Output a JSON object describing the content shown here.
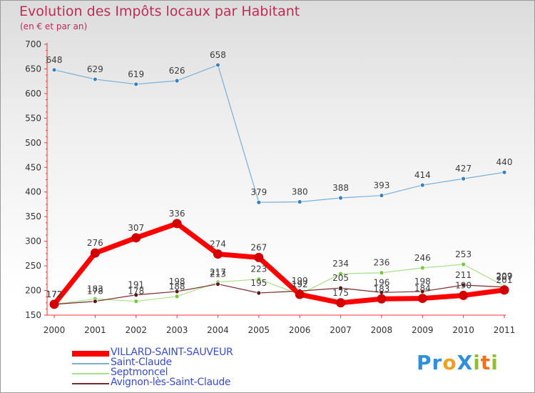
{
  "title": "Evolution des Impôts locaux par Habitant",
  "subtitle": "(en € et par an)",
  "logo": {
    "text": "ProXiti",
    "letters": [
      {
        "ch": "P",
        "color": "#2f8fd8"
      },
      {
        "ch": "r",
        "color": "#2f8fd8"
      },
      {
        "ch": "o",
        "color": "#f0a020"
      },
      {
        "ch": "X",
        "color": "#2f8fd8"
      },
      {
        "ch": "i",
        "color": "#90c030"
      },
      {
        "ch": "t",
        "color": "#f07020"
      },
      {
        "ch": "i",
        "color": "#90c030"
      }
    ]
  },
  "chart_data": {
    "type": "line",
    "title": "Evolution des Impôts locaux par Habitant",
    "subtitle": "(en € et par an)",
    "xlabel": "",
    "ylabel": "",
    "x": [
      "2000",
      "2001",
      "2002",
      "2003",
      "2004",
      "2005",
      "2006",
      "2007",
      "2008",
      "2009",
      "2010",
      "2011"
    ],
    "ylim": [
      150,
      700
    ],
    "yticks": [
      150,
      200,
      250,
      300,
      350,
      400,
      450,
      500,
      550,
      600,
      650,
      700
    ],
    "grid": false,
    "legend_position": "bottom-left",
    "series": [
      {
        "name": "VILLARD-SAINT-SAUVEUR",
        "color": "#ff0000",
        "marker": "#d40000",
        "width": 7,
        "r": 6,
        "values": [
          172,
          276,
          307,
          336,
          274,
          267,
          192,
          175,
          183,
          184,
          190,
          201
        ],
        "labels": [
          "172",
          "276",
          "307",
          "336",
          "274",
          "267",
          "192",
          "175",
          "183",
          "184",
          "190",
          "201"
        ]
      },
      {
        "name": "Saint-Claude",
        "color": "#7aaed6",
        "marker": "#3a7fc0",
        "width": 1.2,
        "r": 3,
        "values": [
          648,
          629,
          619,
          626,
          658,
          379,
          380,
          388,
          393,
          414,
          427,
          440
        ],
        "labels": [
          "648",
          "629",
          "619",
          "626",
          "658",
          "379",
          "380",
          "388",
          "393",
          "414",
          "427",
          "440"
        ]
      },
      {
        "name": "Septmoncel",
        "color": "#a8e088",
        "marker": "#78c840",
        "width": 1.2,
        "r": 3,
        "values": [
          172,
          183,
          178,
          188,
          217,
          223,
          192,
          234,
          236,
          246,
          253,
          209
        ],
        "labels": [
          "172",
          "183",
          "178",
          "188",
          "217",
          "223",
          "192",
          "234",
          "236",
          "246",
          "253",
          "209"
        ]
      },
      {
        "name": "Avignon-lès-Saint-Claude",
        "color": "#7a2a2a",
        "marker": "#5a1818",
        "width": 1.2,
        "r": 3,
        "values": [
          172,
          178,
          191,
          198,
          213,
          195,
          199,
          205,
          196,
          198,
          211,
          207
        ],
        "labels": [
          "172",
          "178",
          "191",
          "198",
          "213",
          "195",
          "199",
          "205",
          "196",
          "198",
          "211",
          "207"
        ]
      }
    ]
  }
}
